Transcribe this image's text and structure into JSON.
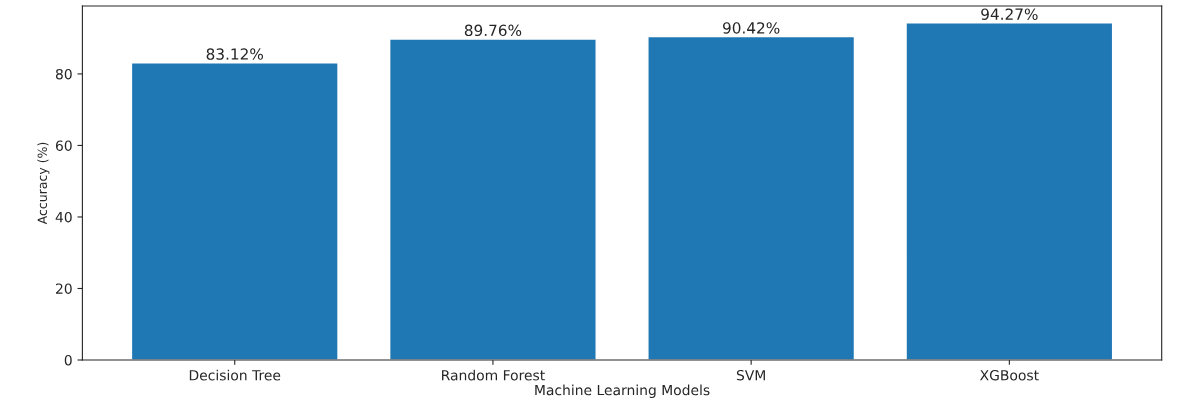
{
  "chart_data": {
    "type": "bar",
    "categories": [
      "Decision Tree",
      "Random Forest",
      "SVM",
      "XGBoost"
    ],
    "values": [
      83.12,
      89.76,
      90.42,
      94.27
    ],
    "value_labels": [
      "83.12%",
      "89.76%",
      "90.42%",
      "94.27%"
    ],
    "color": "#1f77b4",
    "xlabel": "Machine Learning Models",
    "ylabel": "Accuracy (%)",
    "ylim": [
      0,
      99
    ],
    "yticks": [
      0,
      20,
      40,
      60,
      80
    ],
    "grid": false,
    "legend": false
  }
}
